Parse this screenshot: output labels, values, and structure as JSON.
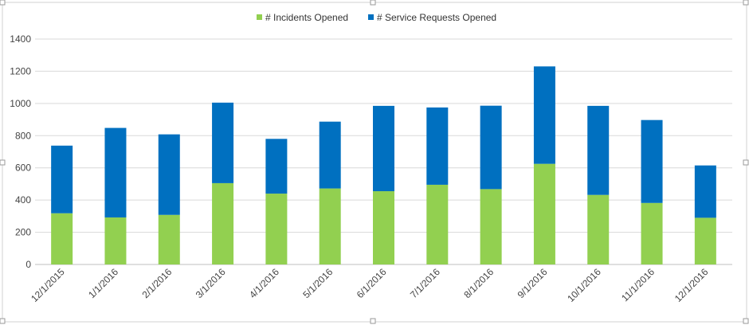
{
  "chart_data": {
    "type": "bar",
    "stacked": true,
    "categories": [
      "12/1/2015",
      "1/1/2016",
      "2/1/2016",
      "3/1/2016",
      "4/1/2016",
      "5/1/2016",
      "6/1/2016",
      "7/1/2016",
      "8/1/2016",
      "9/1/2016",
      "10/1/2016",
      "11/1/2016",
      "12/1/2016"
    ],
    "series": [
      {
        "name": "# Incidents Opened",
        "color": "#92d050",
        "values": [
          318,
          292,
          308,
          505,
          440,
          472,
          455,
          495,
          468,
          625,
          432,
          382,
          290
        ]
      },
      {
        "name": "# Service Requests Opened",
        "color": "#0070c0",
        "values": [
          420,
          556,
          500,
          500,
          340,
          415,
          530,
          480,
          518,
          605,
          553,
          515,
          325
        ]
      }
    ],
    "title": "",
    "xlabel": "",
    "ylabel": "",
    "ylim": [
      0,
      1400
    ],
    "yticks": [
      "0",
      "200",
      "400",
      "600",
      "800",
      "1000",
      "1200",
      "1400"
    ],
    "grid": true,
    "legend": "top-center"
  }
}
